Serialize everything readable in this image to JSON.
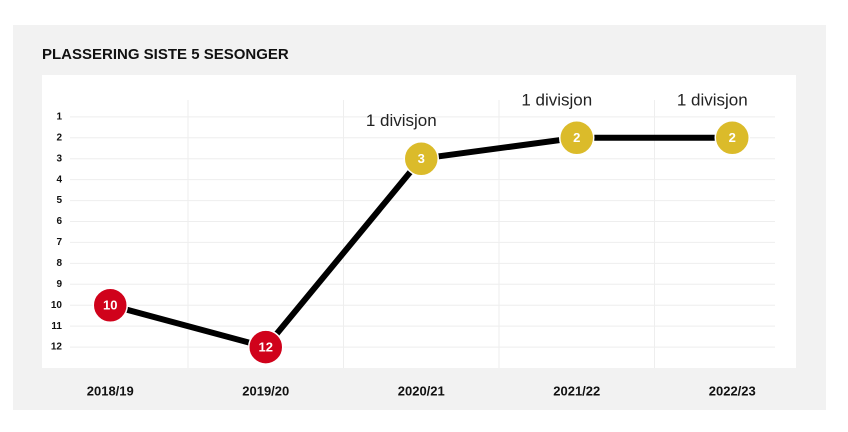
{
  "chart_data": {
    "type": "line",
    "title": "PLASSERING SISTE 5 SESONGER",
    "categories": [
      "2018/19",
      "2019/20",
      "2020/21",
      "2021/22",
      "2022/23"
    ],
    "series": [
      {
        "color": "#000000",
        "values": [
          10,
          12,
          3,
          2,
          2
        ]
      }
    ],
    "marker_colors": [
      "#d0021b",
      "#d0021b",
      "#dbbb2a",
      "#dbbb2a",
      "#dbbb2a"
    ],
    "annotations": [
      null,
      null,
      "1 divisjon",
      "1 divisjon",
      "1 divisjon"
    ],
    "ylim": [
      13,
      -1
    ],
    "yticks": [
      1,
      2,
      3,
      4,
      5,
      6,
      7,
      8,
      9,
      10,
      11,
      12
    ],
    "grid": true
  }
}
